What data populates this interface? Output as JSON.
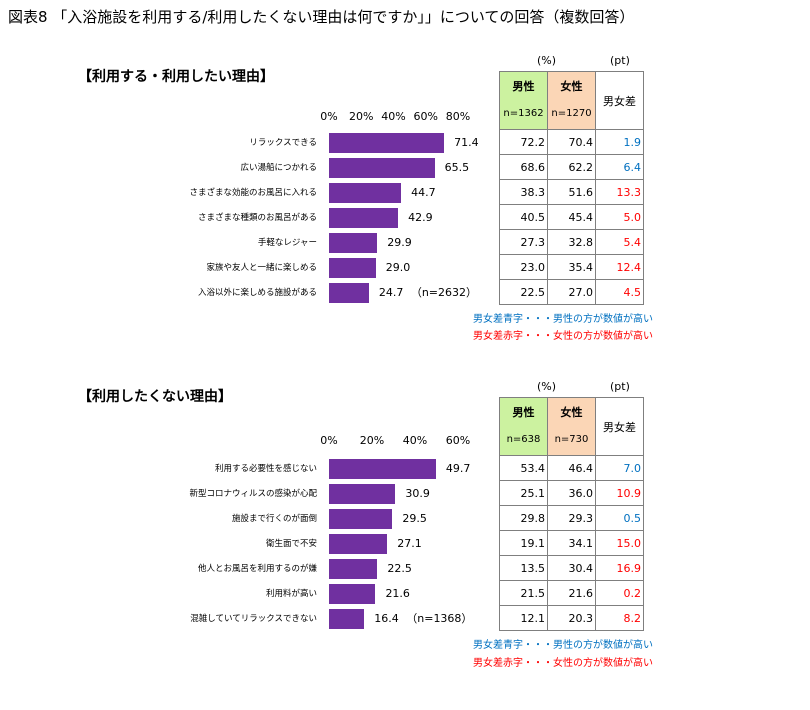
{
  "title": "図表8 「入浴施設を利用する/利用したくない理由は何ですか」」についての回答（複数回答）",
  "colors": {
    "bar": "#7030a0",
    "male_header": "#ccf2a0",
    "female_header": "#fbd6b6",
    "blue": "#0070c0",
    "red": "#ff0000"
  },
  "sections": [
    {
      "heading": "【利用する・利用したい理由】",
      "unit_pct": "(%)",
      "unit_pt": "(pt)",
      "header_male": "男性",
      "header_female": "女性",
      "header_diff": "男女差",
      "n_male": "n=1362",
      "n_female": "n=1270",
      "n_note": "（n=2632）",
      "legend_blue": "男女差青字・・・男性の方が数値が高い",
      "legend_red": "男女差赤字・・・女性の方が数値が高い",
      "rows": [
        {
          "male": "72.2",
          "female": "70.4",
          "diff": "1.9",
          "diff_color": "blue"
        },
        {
          "male": "68.6",
          "female": "62.2",
          "diff": "6.4",
          "diff_color": "blue"
        },
        {
          "male": "38.3",
          "female": "51.6",
          "diff": "13.3",
          "diff_color": "red"
        },
        {
          "male": "40.5",
          "female": "45.4",
          "diff": "5.0",
          "diff_color": "red"
        },
        {
          "male": "27.3",
          "female": "32.8",
          "diff": "5.4",
          "diff_color": "red"
        },
        {
          "male": "23.0",
          "female": "35.4",
          "diff": "12.4",
          "diff_color": "red"
        },
        {
          "male": "22.5",
          "female": "27.0",
          "diff": "4.5",
          "diff_color": "red"
        }
      ]
    },
    {
      "heading": "【利用したくない理由】",
      "unit_pct": "(%)",
      "unit_pt": "(pt)",
      "header_male": "男性",
      "header_female": "女性",
      "header_diff": "男女差",
      "n_male": "n=638",
      "n_female": "n=730",
      "n_note": "（n=1368）",
      "legend_blue": "男女差青字・・・男性の方が数値が高い",
      "legend_red": "男女差赤字・・・女性の方が数値が高い",
      "rows": [
        {
          "male": "53.4",
          "female": "46.4",
          "diff": "7.0",
          "diff_color": "blue"
        },
        {
          "male": "25.1",
          "female": "36.0",
          "diff": "10.9",
          "diff_color": "red"
        },
        {
          "male": "29.8",
          "female": "29.3",
          "diff": "0.5",
          "diff_color": "blue"
        },
        {
          "male": "19.1",
          "female": "34.1",
          "diff": "15.0",
          "diff_color": "red"
        },
        {
          "male": "13.5",
          "female": "30.4",
          "diff": "16.9",
          "diff_color": "red"
        },
        {
          "male": "21.5",
          "female": "21.6",
          "diff": "0.2",
          "diff_color": "red"
        },
        {
          "male": "12.1",
          "female": "20.3",
          "diff": "8.2",
          "diff_color": "red"
        }
      ]
    }
  ],
  "chart_data": [
    {
      "type": "bar",
      "orientation": "horizontal",
      "categories": [
        "リラックスできる",
        "広い湯船につかれる",
        "さまざまな効能のお風呂に入れる",
        "さまざまな種類のお風呂がある",
        "手軽なレジャー",
        "家族や友人と一緒に楽しめる",
        "入浴以外に楽しめる施設がある"
      ],
      "values": [
        71.4,
        65.5,
        44.7,
        42.9,
        29.9,
        29.0,
        24.7
      ],
      "value_labels": [
        "71.4",
        "65.5",
        "44.7",
        "42.9",
        "29.9",
        "29.0",
        "24.7"
      ],
      "ticks": [
        "0%",
        "20%",
        "40%",
        "60%",
        "80%"
      ],
      "xlim": [
        0,
        80
      ],
      "grid": false
    },
    {
      "type": "bar",
      "orientation": "horizontal",
      "categories": [
        "利用する必要性を感じない",
        "新型コロナウィルスの感染が心配",
        "施設まで行くのが面倒",
        "衛生面で不安",
        "他人とお風呂を利用するのが嫌",
        "利用料が高い",
        "混雑していてリラックスできない"
      ],
      "values": [
        49.7,
        30.9,
        29.5,
        27.1,
        22.5,
        21.6,
        16.4
      ],
      "value_labels": [
        "49.7",
        "30.9",
        "29.5",
        "27.1",
        "22.5",
        "21.6",
        "16.4"
      ],
      "ticks": [
        "0%",
        "20%",
        "40%",
        "60%"
      ],
      "xlim": [
        0,
        60
      ],
      "grid": false
    }
  ]
}
